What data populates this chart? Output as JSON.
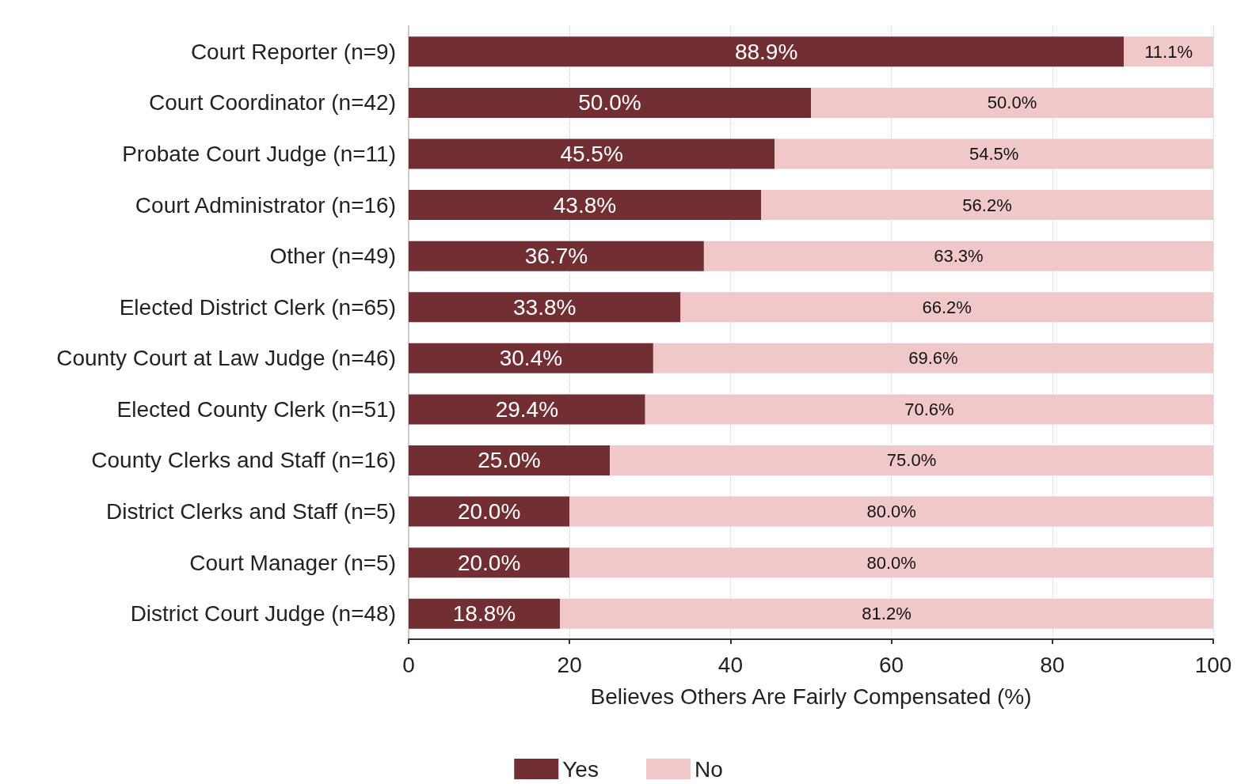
{
  "chart_data": {
    "type": "bar",
    "orientation": "horizontal",
    "stacked": true,
    "xlabel": "Believes Others Are Fairly Compensated (%)",
    "categories": [
      "Court Reporter (n=9)",
      "Court Coordinator (n=42)",
      "Probate Court Judge (n=11)",
      "Court Administrator (n=16)",
      "Other (n=49)",
      "Elected District Clerk (n=65)",
      "County Court at Law Judge (n=46)",
      "Elected County Clerk (n=51)",
      "County Clerks and Staff (n=16)",
      "District Clerks and Staff (n=5)",
      "Court Manager (n=5)",
      "District Court Judge (n=48)"
    ],
    "series": [
      {
        "name": "Yes",
        "color": "#722f33",
        "values": [
          88.9,
          50.0,
          45.5,
          43.8,
          36.7,
          33.8,
          30.4,
          29.4,
          25.0,
          20.0,
          20.0,
          18.8
        ],
        "value_labels": [
          "88.9%",
          "50.0%",
          "45.5%",
          "43.8%",
          "36.7%",
          "33.8%",
          "30.4%",
          "29.4%",
          "25.0%",
          "20.0%",
          "20.0%",
          "18.8%"
        ]
      },
      {
        "name": "No",
        "color": "#f0c8ca",
        "values": [
          11.1,
          50.0,
          54.5,
          56.2,
          63.3,
          66.2,
          69.6,
          70.6,
          75.0,
          80.0,
          80.0,
          81.2
        ],
        "value_labels": [
          "11.1%",
          "50.0%",
          "54.5%",
          "56.2%",
          "63.3%",
          "66.2%",
          "69.6%",
          "70.6%",
          "75.0%",
          "80.0%",
          "80.0%",
          "81.2%"
        ]
      }
    ],
    "xlim": [
      0,
      100
    ],
    "xticks": [
      0,
      20,
      40,
      60,
      80,
      100
    ],
    "grid": "x",
    "legend": "bottom"
  }
}
